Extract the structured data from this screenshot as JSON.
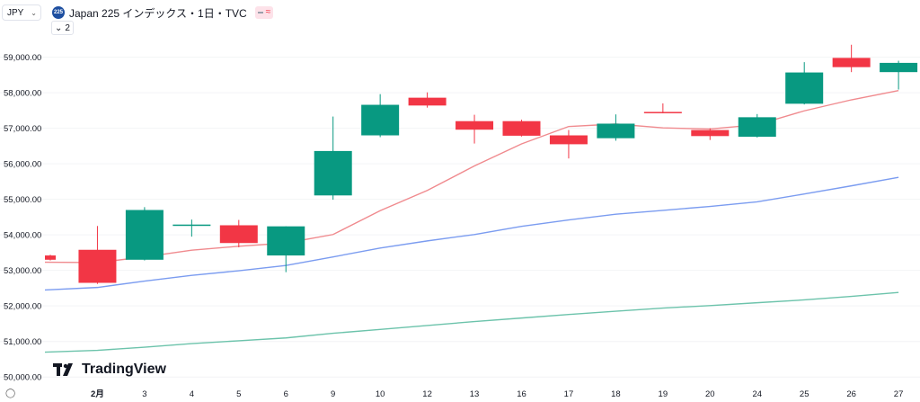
{
  "header": {
    "currency": "JPY",
    "symbol_badge": "225",
    "title": "Japan 225 インデックス・1日・TVC",
    "indicator_count": "2"
  },
  "branding": {
    "logo_text": "TradingView"
  },
  "colors": {
    "up": "#089981",
    "down": "#f23645",
    "ma_short": "#f08a8e",
    "ma_mid": "#7b9cf0",
    "ma_long": "#6cc3ab",
    "axis_text": "#131722",
    "grid": "#f3f4f6"
  },
  "chart_data": {
    "type": "candlestick",
    "y_ticks": [
      "50,000.00",
      "51,000.00",
      "52,000.00",
      "53,000.00",
      "54,000.00",
      "55,000.00",
      "56,000.00",
      "57,000.00",
      "58,000.00",
      "59,000.00"
    ],
    "ylim": [
      49980,
      59850
    ],
    "x_labels": [
      "2月",
      "3",
      "4",
      "5",
      "6",
      "9",
      "10",
      "12",
      "13",
      "16",
      "17",
      "18",
      "19",
      "20",
      "24",
      "25",
      "26",
      "27"
    ],
    "candles": [
      {
        "label": "",
        "open": 53420,
        "high": 53440,
        "low": 53280,
        "close": 53300
      },
      {
        "label": "2月",
        "open": 53580,
        "high": 54250,
        "low": 52620,
        "close": 52650
      },
      {
        "label": "3",
        "open": 53300,
        "high": 54780,
        "low": 53280,
        "close": 54700
      },
      {
        "label": "4",
        "open": 54260,
        "high": 54430,
        "low": 53950,
        "close": 54290
      },
      {
        "label": "5",
        "open": 54270,
        "high": 54420,
        "low": 53650,
        "close": 53770
      },
      {
        "label": "6",
        "open": 53420,
        "high": 54240,
        "low": 52950,
        "close": 54240
      },
      {
        "label": "9",
        "open": 55110,
        "high": 57330,
        "low": 54990,
        "close": 56360
      },
      {
        "label": "10",
        "open": 56800,
        "high": 57960,
        "low": 56750,
        "close": 57660
      },
      {
        "label": "12",
        "open": 57860,
        "high": 58010,
        "low": 57580,
        "close": 57640
      },
      {
        "label": "13",
        "open": 57200,
        "high": 57380,
        "low": 56570,
        "close": 56960
      },
      {
        "label": "16",
        "open": 57200,
        "high": 57240,
        "low": 56770,
        "close": 56790
      },
      {
        "label": "17",
        "open": 56800,
        "high": 56950,
        "low": 56150,
        "close": 56550
      },
      {
        "label": "18",
        "open": 56720,
        "high": 57390,
        "low": 56650,
        "close": 57130
      },
      {
        "label": "19",
        "open": 57460,
        "high": 57700,
        "low": 57420,
        "close": 57450
      },
      {
        "label": "20",
        "open": 56950,
        "high": 57000,
        "low": 56670,
        "close": 56780
      },
      {
        "label": "24",
        "open": 56760,
        "high": 57400,
        "low": 56740,
        "close": 57310
      },
      {
        "label": "25",
        "open": 57690,
        "high": 58860,
        "low": 57670,
        "close": 58570
      },
      {
        "label": "26",
        "open": 58980,
        "high": 59350,
        "low": 58580,
        "close": 58720
      },
      {
        "label": "27",
        "open": 58580,
        "high": 58900,
        "low": 58090,
        "close": 58840
      }
    ],
    "moving_averages": [
      {
        "values": [
          53230,
          53220,
          53380,
          53570,
          53680,
          53770,
          54010,
          54680,
          55250,
          55940,
          56560,
          57050,
          57120,
          57010,
          56980,
          57100,
          57490,
          57800,
          58060
        ]
      },
      {
        "values": [
          52450,
          52520,
          52700,
          52860,
          52990,
          53140,
          53380,
          53630,
          53830,
          54010,
          54240,
          54420,
          54580,
          54690,
          54800,
          54930,
          55150,
          55380,
          55620
        ]
      },
      {
        "values": [
          50700,
          50750,
          50840,
          50940,
          51020,
          51100,
          51230,
          51340,
          51450,
          51560,
          51660,
          51760,
          51850,
          51940,
          52010,
          52090,
          52170,
          52270,
          52380
        ]
      }
    ]
  }
}
